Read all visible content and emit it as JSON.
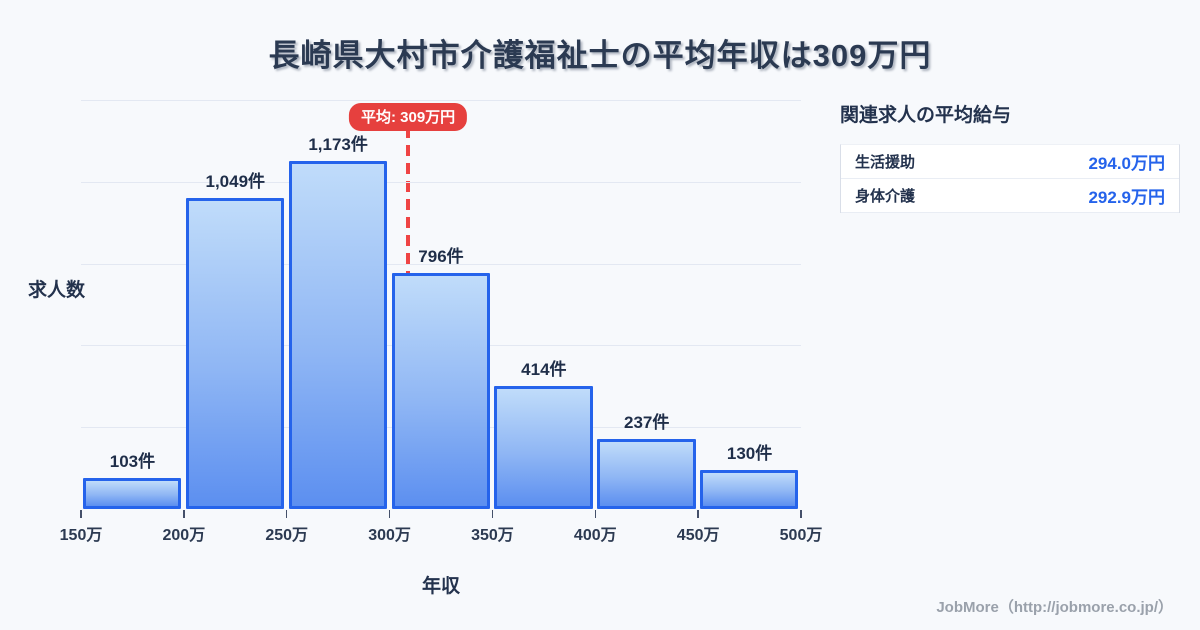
{
  "title": "長崎県大村市介護福祉士の平均年収は309万円",
  "chart_data": {
    "type": "bar",
    "title": "長崎県大村市介護福祉士の平均年収は309万円",
    "xlabel": "年収",
    "ylabel": "求人数",
    "x_tick_labels": [
      "150万",
      "200万",
      "250万",
      "300万",
      "350万",
      "400万",
      "450万",
      "500万"
    ],
    "categories": [
      "150万-200万",
      "200万-250万",
      "250万-300万",
      "300万-350万",
      "350万-400万",
      "400万-450万",
      "450万-500万"
    ],
    "values": [
      103,
      1049,
      1173,
      796,
      414,
      237,
      130
    ],
    "bar_labels": [
      "103件",
      "1,049件",
      "1,173件",
      "796件",
      "414件",
      "237件",
      "130件"
    ],
    "x_range": [
      150,
      500
    ],
    "ylim": [
      0,
      1380
    ],
    "grid": "horizontal",
    "grid_divisions": 5,
    "legend": "none",
    "average": {
      "value": 309,
      "label": "平均: 309万円"
    }
  },
  "side_panel": {
    "title": "関連求人の平均給与",
    "rows": [
      {
        "label": "生活援助",
        "value": "294.0万円"
      },
      {
        "label": "身体介護",
        "value": "292.9万円"
      }
    ]
  },
  "footer": {
    "credit": "JobMore（http://jobmore.co.jp/）"
  },
  "colors": {
    "background": "#f7f9fc",
    "title_text": "#2b3a52",
    "bar_gradient_top": "#c0dcfa",
    "bar_gradient_bottom": "#5c8ff0",
    "bar_border": "#2563eb",
    "average_red": "#e6403e",
    "value_blue": "#2563eb",
    "gridline": "#e3e8f2",
    "credit_gray": "#9aa1ab"
  }
}
